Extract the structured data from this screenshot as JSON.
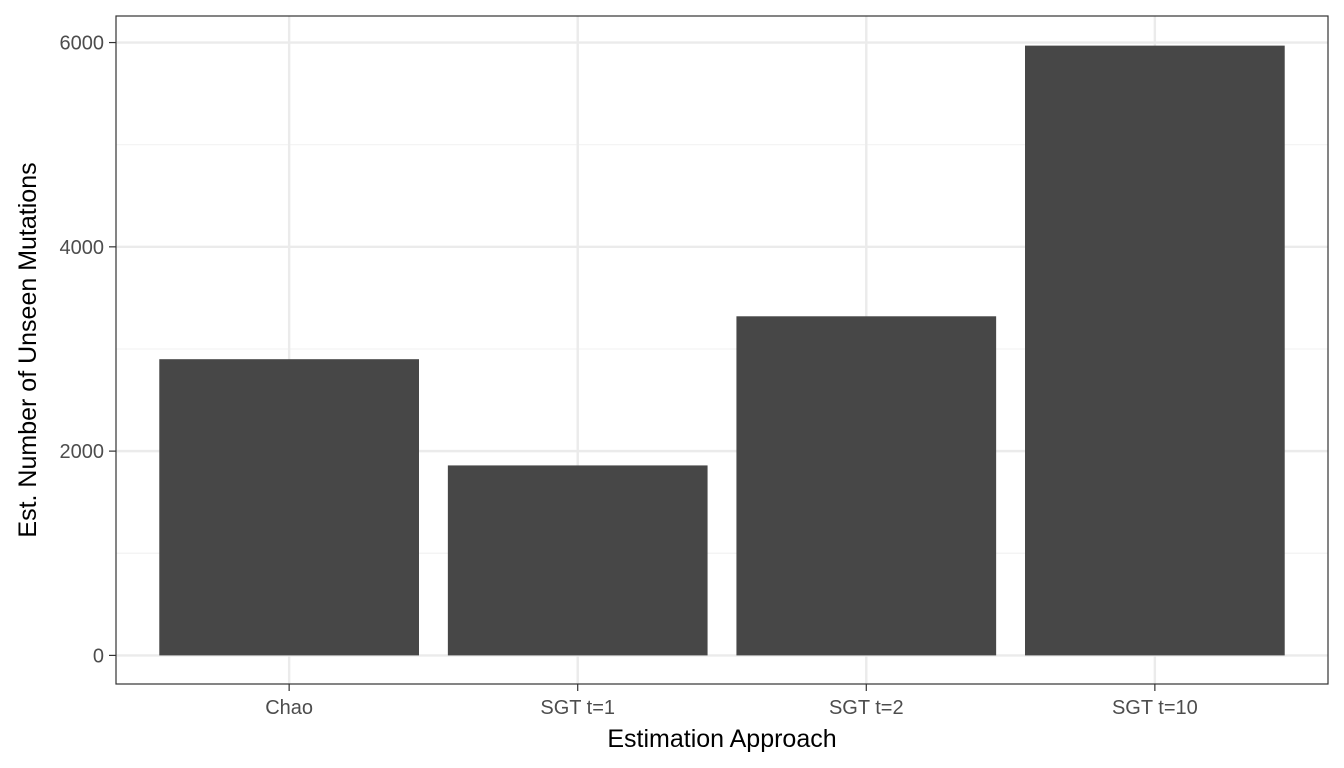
{
  "chart_data": {
    "type": "bar",
    "categories": [
      "Chao",
      "SGT t=1",
      "SGT t=2",
      "SGT t=10"
    ],
    "values": [
      2900,
      1860,
      3320,
      5970
    ],
    "xlabel": "Estimation Approach",
    "ylabel": "Est. Number of Unseen Mutations",
    "ylim": [
      -280,
      6260
    ],
    "yticks": [
      0,
      2000,
      4000,
      6000
    ],
    "yticks_minor": [
      1000,
      3000,
      5000
    ],
    "grid": true,
    "legend": "none",
    "colors": {
      "bar": "#474747",
      "grid_major": "#ebebeb",
      "grid_minor": "#f3f3f3",
      "panel_border": "#333333"
    }
  }
}
